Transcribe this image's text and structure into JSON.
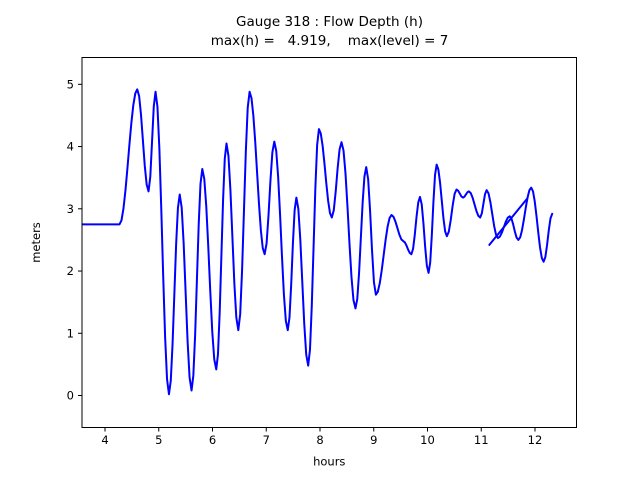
{
  "window": {
    "background": "#ffffff"
  },
  "chart_data": {
    "type": "line",
    "title": "Gauge 318 : Flow Depth (h)",
    "subtitle": "max(h) =   4.919,    max(level) = 7",
    "xlabel": "hours",
    "ylabel": "meters",
    "xticks": [
      4,
      5,
      6,
      7,
      8,
      9,
      10,
      11,
      12
    ],
    "yticks": [
      0,
      1,
      2,
      3,
      4,
      5
    ],
    "xlim": [
      3.572,
      12.772
    ],
    "ylim": [
      -0.514,
      5.431
    ],
    "grid": false,
    "legend": null,
    "line_color": "#0000ff",
    "axis_color": "#000000",
    "max_h": 4.919,
    "max_level": 7,
    "series": [
      {
        "name": "flow-depth-main",
        "interp": "cosine",
        "points": [
          [
            3.572,
            2.75
          ],
          [
            4.27,
            2.75
          ],
          [
            4.6,
            4.919
          ],
          [
            4.81,
            3.28
          ],
          [
            4.94,
            4.88
          ],
          [
            5.19,
            0.02
          ],
          [
            5.39,
            3.23
          ],
          [
            5.61,
            0.08
          ],
          [
            5.81,
            3.64
          ],
          [
            6.07,
            0.42
          ],
          [
            6.26,
            4.05
          ],
          [
            6.48,
            1.05
          ],
          [
            6.69,
            4.88
          ],
          [
            6.97,
            2.27
          ],
          [
            7.15,
            4.08
          ],
          [
            7.4,
            1.05
          ],
          [
            7.56,
            3.18
          ],
          [
            7.78,
            0.48
          ],
          [
            7.98,
            4.28
          ],
          [
            8.22,
            2.86
          ],
          [
            8.4,
            4.07
          ],
          [
            8.66,
            1.4
          ],
          [
            8.86,
            3.67
          ],
          [
            9.04,
            1.62
          ],
          [
            9.33,
            2.9
          ],
          [
            9.55,
            2.48
          ],
          [
            9.7,
            2.27
          ],
          [
            9.86,
            3.19
          ],
          [
            10.02,
            1.97
          ],
          [
            10.17,
            3.71
          ],
          [
            10.36,
            2.56
          ],
          [
            10.54,
            3.31
          ],
          [
            10.66,
            3.18
          ],
          [
            10.77,
            3.28
          ],
          [
            10.98,
            2.86
          ],
          [
            11.1,
            3.3
          ],
          [
            11.31,
            2.53
          ],
          [
            11.53,
            2.88
          ],
          [
            11.69,
            2.5
          ],
          [
            11.93,
            3.34
          ],
          [
            12.16,
            2.15
          ],
          [
            12.32,
            2.92
          ]
        ]
      },
      {
        "name": "flow-depth-overlap-segment",
        "interp": "linear",
        "points": [
          [
            11.15,
            2.42
          ],
          [
            11.86,
            3.17
          ]
        ]
      }
    ]
  }
}
